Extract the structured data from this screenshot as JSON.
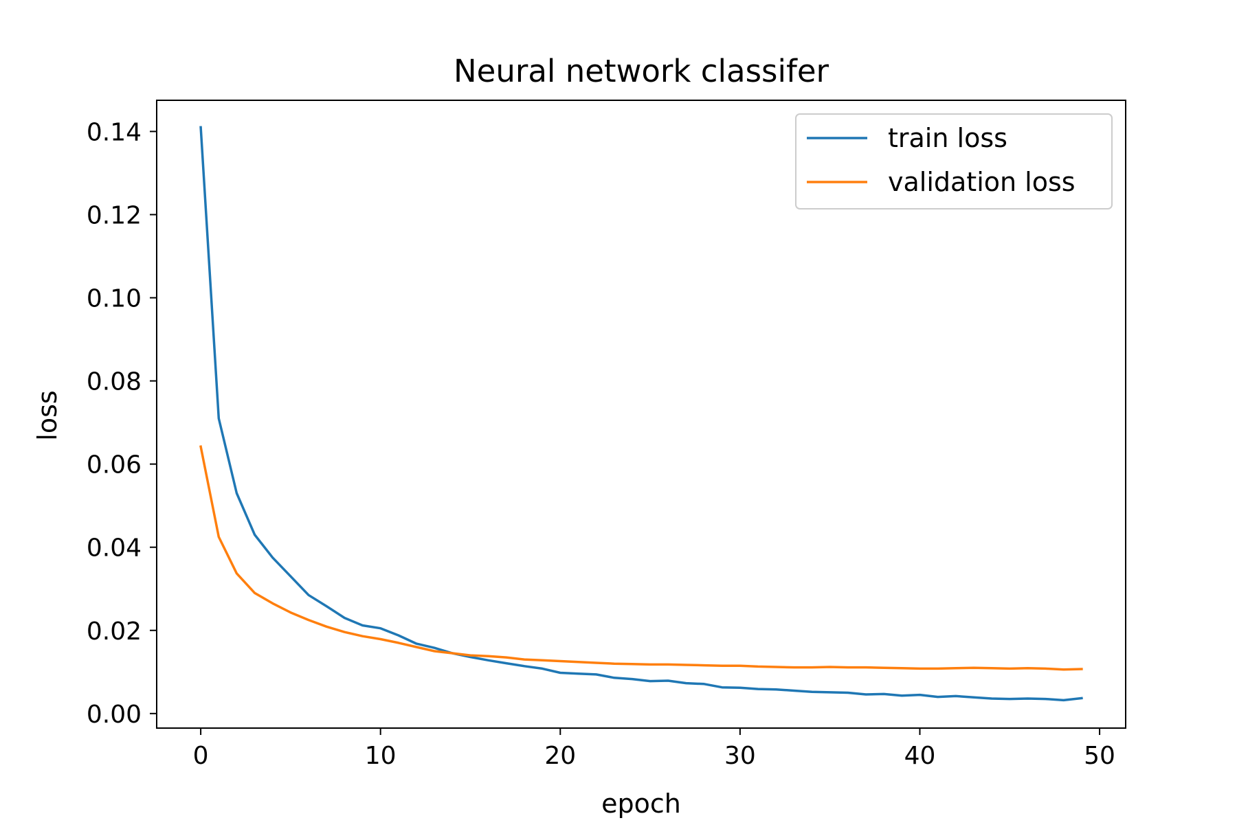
{
  "chart_data": {
    "type": "line",
    "title": "Neural network classifer",
    "xlabel": "epoch",
    "ylabel": "loss",
    "xlim": [
      -2.45,
      51.45
    ],
    "ylim": [
      -0.0035,
      0.1475
    ],
    "xticks": [
      0,
      10,
      20,
      30,
      40,
      50
    ],
    "yticks": [
      0.0,
      0.02,
      0.04,
      0.06,
      0.08,
      0.1,
      0.12,
      0.14
    ],
    "xtick_labels": [
      "0",
      "10",
      "20",
      "30",
      "40",
      "50"
    ],
    "ytick_labels": [
      "0.00",
      "0.02",
      "0.04",
      "0.06",
      "0.08",
      "0.10",
      "0.12",
      "0.14"
    ],
    "grid": false,
    "legend_position": "top-right",
    "x": [
      0,
      1,
      2,
      3,
      4,
      5,
      6,
      7,
      8,
      9,
      10,
      11,
      12,
      13,
      14,
      15,
      16,
      17,
      18,
      19,
      20,
      21,
      22,
      23,
      24,
      25,
      26,
      27,
      28,
      29,
      30,
      31,
      32,
      33,
      34,
      35,
      36,
      37,
      38,
      39,
      40,
      41,
      42,
      43,
      44,
      45,
      46,
      47,
      48,
      49
    ],
    "series": [
      {
        "name": "train loss",
        "color": "#1f77b4",
        "values": [
          0.141,
          0.071,
          0.053,
          0.043,
          0.0375,
          0.033,
          0.0285,
          0.0258,
          0.023,
          0.0212,
          0.0205,
          0.0188,
          0.0168,
          0.0158,
          0.0145,
          0.0136,
          0.0128,
          0.0121,
          0.0114,
          0.0108,
          0.0098,
          0.0096,
          0.0094,
          0.0086,
          0.0083,
          0.0078,
          0.0079,
          0.0073,
          0.0071,
          0.0063,
          0.0062,
          0.0059,
          0.0058,
          0.0055,
          0.0052,
          0.0051,
          0.005,
          0.0046,
          0.0047,
          0.0043,
          0.0045,
          0.004,
          0.0042,
          0.0039,
          0.0036,
          0.0035,
          0.0036,
          0.0035,
          0.0032,
          0.0037
        ]
      },
      {
        "name": "validation loss",
        "color": "#ff7f0e",
        "values": [
          0.0642,
          0.0425,
          0.0337,
          0.029,
          0.0265,
          0.0243,
          0.0225,
          0.0209,
          0.0196,
          0.0186,
          0.0179,
          0.017,
          0.016,
          0.015,
          0.0145,
          0.014,
          0.0138,
          0.0135,
          0.013,
          0.0128,
          0.0126,
          0.0124,
          0.0122,
          0.012,
          0.0119,
          0.0118,
          0.0118,
          0.0117,
          0.0116,
          0.0115,
          0.0115,
          0.0113,
          0.0112,
          0.0111,
          0.0111,
          0.0112,
          0.0111,
          0.0111,
          0.011,
          0.0109,
          0.0108,
          0.0108,
          0.0109,
          0.011,
          0.0109,
          0.0108,
          0.0109,
          0.0108,
          0.0106,
          0.0107
        ]
      }
    ]
  }
}
